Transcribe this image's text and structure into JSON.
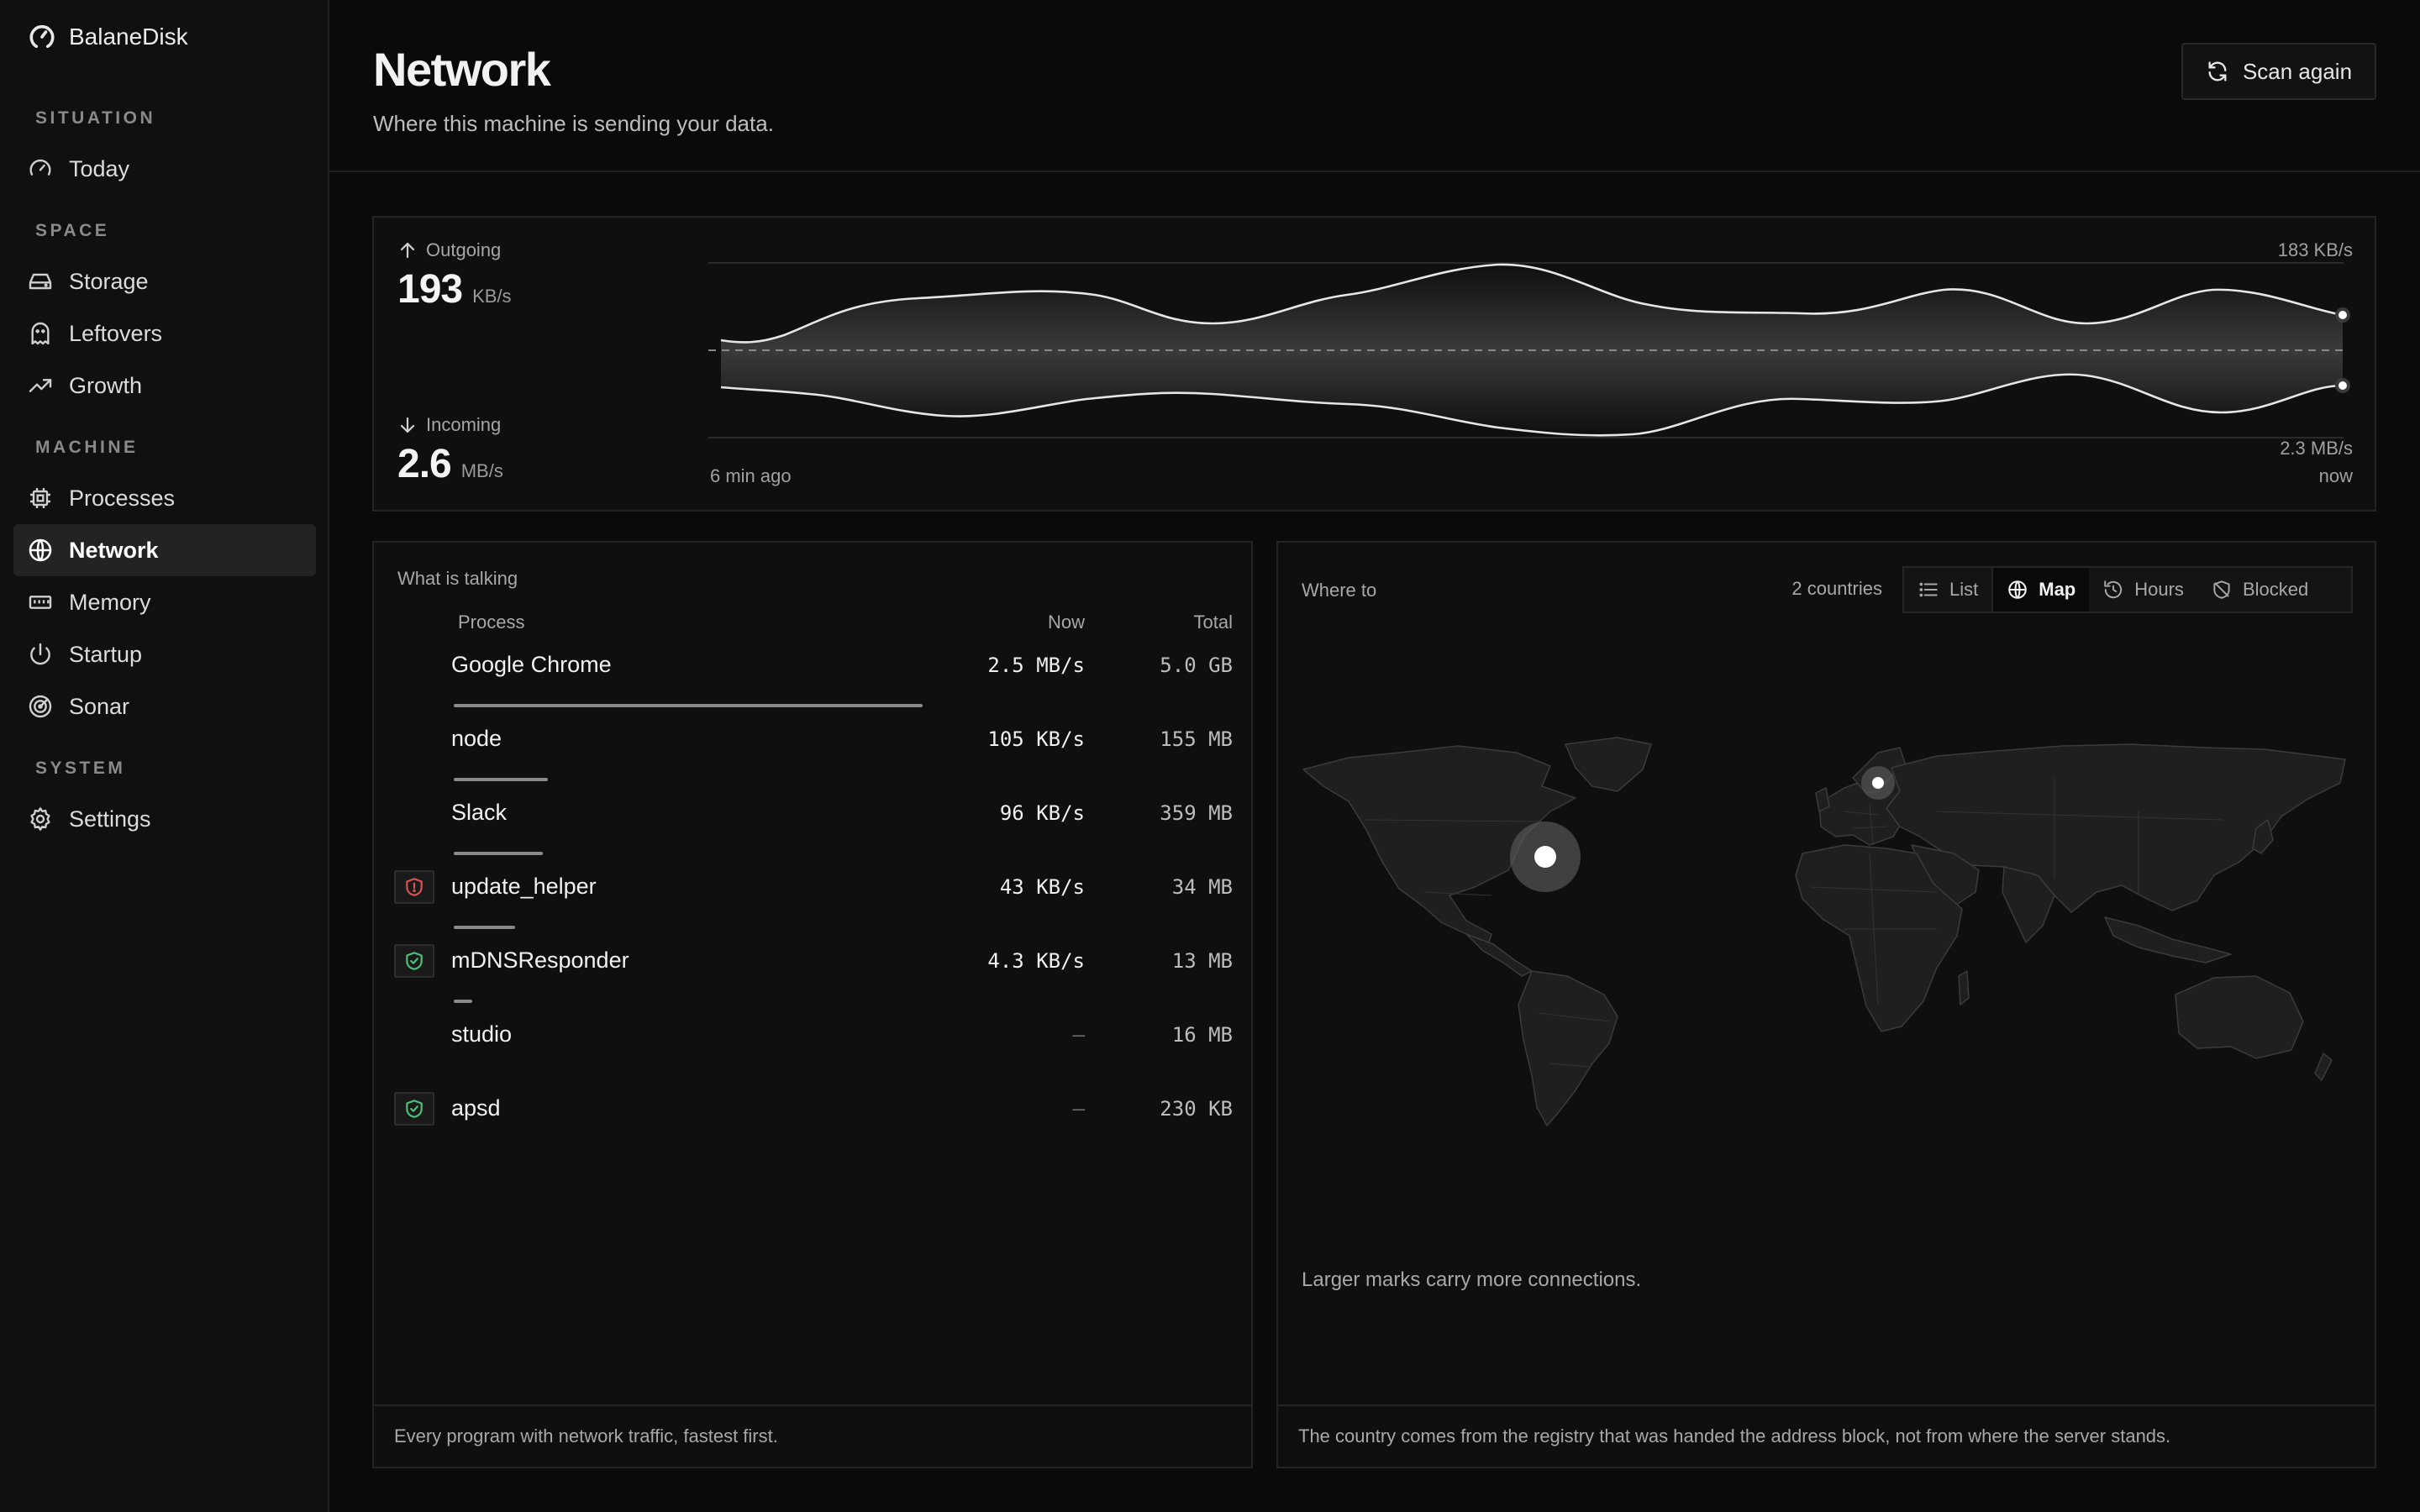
{
  "app": {
    "name": "BalaneDisk"
  },
  "sidebar": {
    "sections": [
      {
        "label": "SITUATION"
      },
      {
        "label": "SPACE"
      },
      {
        "label": "MACHINE"
      },
      {
        "label": "SYSTEM"
      }
    ],
    "items": [
      {
        "label": "Today",
        "icon": "gauge-icon"
      },
      {
        "label": "Storage",
        "icon": "drive-icon"
      },
      {
        "label": "Leftovers",
        "icon": "ghost-icon"
      },
      {
        "label": "Growth",
        "icon": "trend-up-icon"
      },
      {
        "label": "Processes",
        "icon": "cpu-icon"
      },
      {
        "label": "Network",
        "icon": "globe-icon",
        "active": true
      },
      {
        "label": "Memory",
        "icon": "memory-icon"
      },
      {
        "label": "Startup",
        "icon": "power-icon"
      },
      {
        "label": "Sonar",
        "icon": "radar-icon"
      },
      {
        "label": "Settings",
        "icon": "gear-icon"
      }
    ]
  },
  "header": {
    "title": "Network",
    "subtitle": "Where this machine is sending your data.",
    "scan_label": "Scan again"
  },
  "traffic": {
    "outgoing": {
      "label": "Outgoing",
      "value": "193",
      "unit": "KB/s"
    },
    "incoming": {
      "label": "Incoming",
      "value": "2.6",
      "unit": "MB/s"
    },
    "top_scale": "183 KB/s",
    "bottom_scale": "2.3 MB/s",
    "start_label": "6 min ago",
    "end_label": "now"
  },
  "processes": {
    "title": "What is talking",
    "headers": {
      "process": "Process",
      "now": "Now",
      "total": "Total"
    },
    "rows": [
      {
        "name": "Google Chrome",
        "now": "2.5 MB/s",
        "total": "5.0 GB",
        "share": 1.0,
        "badge": ""
      },
      {
        "name": "node",
        "now": "105 KB/s",
        "total": "155 MB",
        "share": 0.2,
        "badge": ""
      },
      {
        "name": "Slack",
        "now": "96 KB/s",
        "total": "359 MB",
        "share": 0.19,
        "badge": ""
      },
      {
        "name": "update_helper",
        "now": "43 KB/s",
        "total": "34 MB",
        "share": 0.13,
        "badge": "warning"
      },
      {
        "name": "mDNSResponder",
        "now": "4.3 KB/s",
        "total": "13 MB",
        "share": 0.04,
        "badge": "trusted"
      },
      {
        "name": "studio",
        "now": "—",
        "total": "16 MB",
        "share": 0,
        "badge": ""
      },
      {
        "name": "apsd",
        "now": "—",
        "total": "230 KB",
        "share": 0,
        "badge": "trusted"
      }
    ],
    "footer": "Every program with network traffic, fastest first."
  },
  "map": {
    "title": "Where to",
    "count": "2 countries",
    "views": [
      {
        "label": "List",
        "icon": "list-icon"
      },
      {
        "label": "Map",
        "icon": "globe-icon",
        "active": true
      },
      {
        "label": "Hours",
        "icon": "history-icon"
      },
      {
        "label": "Blocked",
        "icon": "shield-slash-icon"
      }
    ],
    "note": "Larger marks carry more connections.",
    "footer": "The country comes from the registry that was handed the address block, not from where the server stands."
  },
  "colors": {
    "background": "#0a0a0a",
    "warning": "#e05252",
    "trusted": "#4fc27a"
  }
}
